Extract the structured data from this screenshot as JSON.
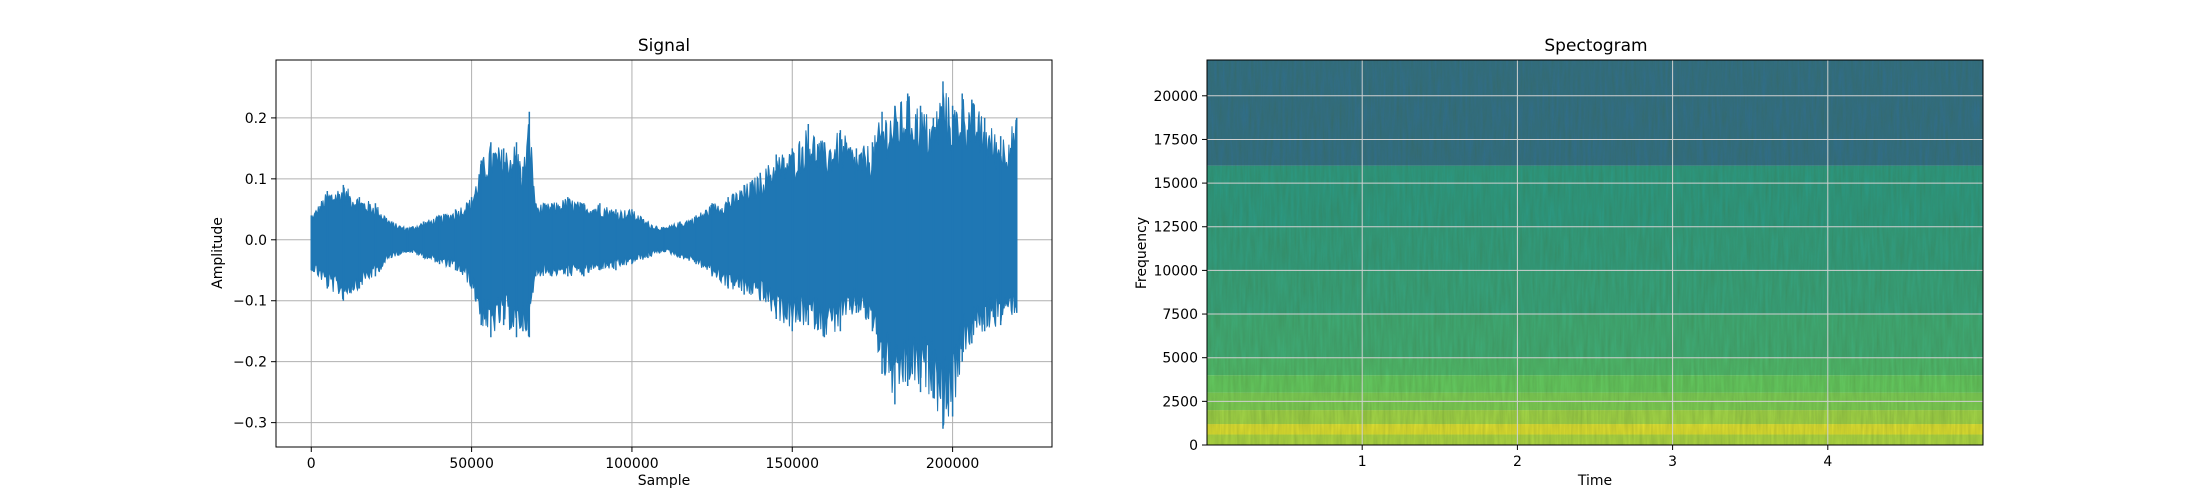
{
  "chart_data": [
    {
      "type": "line",
      "title": "Signal",
      "xlabel": "Sample",
      "ylabel": "Amplitude",
      "xlim": [
        -11000,
        231000
      ],
      "ylim": [
        -0.34,
        0.295
      ],
      "grid": true,
      "color": "#1f77b4",
      "xticks": [
        0,
        50000,
        100000,
        150000,
        200000
      ],
      "xtick_labels": [
        "0",
        "50000",
        "100000",
        "150000",
        "200000"
      ],
      "yticks": [
        -0.3,
        -0.2,
        -0.1,
        0.0,
        0.1,
        0.2
      ],
      "ytick_labels": [
        "−0.3",
        "−0.2",
        "−0.1",
        "0.0",
        "0.1",
        "0.2"
      ],
      "series": [
        {
          "x": [
            0,
            5000,
            10000,
            15000,
            20000,
            25000,
            30000,
            35000,
            40000,
            45000,
            50000,
            53000,
            56000,
            60000,
            64000,
            66000,
            68000,
            70000,
            75000,
            80000,
            85000,
            90000,
            95000,
            100000,
            105000,
            110000,
            115000,
            120000,
            125000,
            130000,
            135000,
            140000,
            145000,
            150000,
            155000,
            160000,
            165000,
            170000,
            175000,
            178000,
            182000,
            186000,
            190000,
            194000,
            197000,
            200000,
            203000,
            206000,
            210000,
            215000,
            220000
          ],
          "upper": [
            0.04,
            0.08,
            0.09,
            0.07,
            0.06,
            0.03,
            0.02,
            0.03,
            0.04,
            0.05,
            0.07,
            0.13,
            0.16,
            0.15,
            0.16,
            0.12,
            0.21,
            0.06,
            0.06,
            0.07,
            0.06,
            0.06,
            0.05,
            0.05,
            0.03,
            0.02,
            0.03,
            0.04,
            0.06,
            0.07,
            0.09,
            0.11,
            0.14,
            0.15,
            0.19,
            0.16,
            0.18,
            0.15,
            0.16,
            0.21,
            0.22,
            0.24,
            0.22,
            0.2,
            0.26,
            0.22,
            0.24,
            0.23,
            0.2,
            0.17,
            0.2
          ],
          "lower": [
            -0.05,
            -0.08,
            -0.1,
            -0.08,
            -0.06,
            -0.03,
            -0.02,
            -0.03,
            -0.04,
            -0.05,
            -0.08,
            -0.14,
            -0.16,
            -0.14,
            -0.16,
            -0.15,
            -0.16,
            -0.06,
            -0.06,
            -0.06,
            -0.06,
            -0.05,
            -0.05,
            -0.04,
            -0.03,
            -0.02,
            -0.03,
            -0.04,
            -0.06,
            -0.08,
            -0.09,
            -0.1,
            -0.13,
            -0.15,
            -0.14,
            -0.16,
            -0.15,
            -0.12,
            -0.15,
            -0.22,
            -0.27,
            -0.24,
            -0.25,
            -0.26,
            -0.31,
            -0.29,
            -0.2,
            -0.17,
            -0.15,
            -0.14,
            -0.12
          ]
        }
      ]
    },
    {
      "type": "heatmap",
      "title": "Spectogram",
      "xlabel": "Time",
      "ylabel": "Frequency",
      "xlim": [
        0,
        5.0
      ],
      "ylim": [
        0,
        22050
      ],
      "grid": true,
      "colormap": "viridis",
      "xticks": [
        1,
        2,
        3,
        4
      ],
      "xtick_labels": [
        "1",
        "2",
        "3",
        "4"
      ],
      "yticks": [
        0,
        2500,
        5000,
        7500,
        10000,
        12500,
        15000,
        17500,
        20000
      ],
      "ytick_labels": [
        "0",
        "2500",
        "5000",
        "7500",
        "10000",
        "12500",
        "15000",
        "17500",
        "20000"
      ],
      "band_levels": [
        {
          "freq_max": 600,
          "level": 0.88
        },
        {
          "freq_max": 1200,
          "level": 0.96
        },
        {
          "freq_max": 2000,
          "level": 0.86
        },
        {
          "freq_max": 3000,
          "level": 0.8
        },
        {
          "freq_max": 4000,
          "level": 0.76
        },
        {
          "freq_max": 5000,
          "level": 0.68
        },
        {
          "freq_max": 7500,
          "level": 0.62
        },
        {
          "freq_max": 10000,
          "level": 0.58
        },
        {
          "freq_max": 12500,
          "level": 0.56
        },
        {
          "freq_max": 16000,
          "level": 0.54
        },
        {
          "freq_max": 22050,
          "level": 0.36
        }
      ]
    }
  ]
}
